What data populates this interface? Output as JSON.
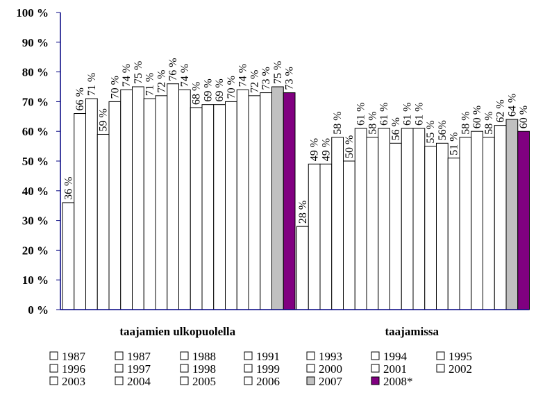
{
  "chart_data": {
    "type": "bar",
    "categories": [
      "taajamien ulkopuolella",
      "taajamissa"
    ],
    "series": [
      {
        "name": "1987",
        "values": [
          36,
          28
        ],
        "labels": [
          "36 %",
          "28 %"
        ],
        "color": "#ffffff"
      },
      {
        "name": "1987",
        "values": [
          66,
          49
        ],
        "labels": [
          "66 %",
          "49 %"
        ],
        "color": "#ffffff"
      },
      {
        "name": "1988",
        "values": [
          71,
          49
        ],
        "labels": [
          "71 %",
          "49 %"
        ],
        "color": "#ffffff"
      },
      {
        "name": "1991",
        "values": [
          59,
          58
        ],
        "labels": [
          "59 %",
          "58 %"
        ],
        "color": "#ffffff"
      },
      {
        "name": "1993",
        "values": [
          70,
          50
        ],
        "labels": [
          "70 %",
          "50 %"
        ],
        "color": "#ffffff"
      },
      {
        "name": "1994",
        "values": [
          74,
          61
        ],
        "labels": [
          "74 %",
          "61 %"
        ],
        "color": "#ffffff"
      },
      {
        "name": "1995",
        "values": [
          75,
          58
        ],
        "labels": [
          "75 %",
          "58 %"
        ],
        "color": "#ffffff"
      },
      {
        "name": "1996",
        "values": [
          71,
          61
        ],
        "labels": [
          "71 %",
          "61 %"
        ],
        "color": "#ffffff"
      },
      {
        "name": "1997",
        "values": [
          72,
          56
        ],
        "labels": [
          "72 %",
          "56 %"
        ],
        "color": "#ffffff"
      },
      {
        "name": "1998",
        "values": [
          76,
          61
        ],
        "labels": [
          "76 %",
          "61 %"
        ],
        "color": "#ffffff"
      },
      {
        "name": "1999",
        "values": [
          74,
          61
        ],
        "labels": [
          "74 %",
          "61 %"
        ],
        "color": "#ffffff"
      },
      {
        "name": "2000",
        "values": [
          68,
          55
        ],
        "labels": [
          "68 %",
          "55 %"
        ],
        "color": "#ffffff"
      },
      {
        "name": "2001",
        "values": [
          69,
          56
        ],
        "labels": [
          "69 %",
          "56%"
        ],
        "color": "#ffffff"
      },
      {
        "name": "2002",
        "values": [
          69,
          51
        ],
        "labels": [
          "69 %",
          "51 %"
        ],
        "color": "#ffffff"
      },
      {
        "name": "2003",
        "values": [
          70,
          58
        ],
        "labels": [
          "70 %",
          "58 %"
        ],
        "color": "#ffffff"
      },
      {
        "name": "2004",
        "values": [
          74,
          60
        ],
        "labels": [
          "74 %",
          "60 %"
        ],
        "color": "#ffffff"
      },
      {
        "name": "2005",
        "values": [
          72,
          58
        ],
        "labels": [
          "72 %",
          "58 %"
        ],
        "color": "#ffffff"
      },
      {
        "name": "2006",
        "values": [
          73,
          62
        ],
        "labels": [
          "73 %",
          "62 %"
        ],
        "color": "#ffffff"
      },
      {
        "name": "2007",
        "values": [
          75,
          64
        ],
        "labels": [
          "75 %",
          "64 %"
        ],
        "color": "#c0c0c0"
      },
      {
        "name": "2008*",
        "values": [
          73,
          60
        ],
        "labels": [
          "73 %",
          "60 %"
        ],
        "color": "#800080"
      }
    ],
    "yticks": [
      "0 %",
      "10 %",
      "20 %",
      "30 %",
      "40 %",
      "50 %",
      "60 %",
      "70 %",
      "80 %",
      "90 %",
      "100 %"
    ],
    "ylim": [
      0,
      100
    ],
    "grid": false,
    "axis_color": "#000080",
    "legend_position": "bottom"
  }
}
